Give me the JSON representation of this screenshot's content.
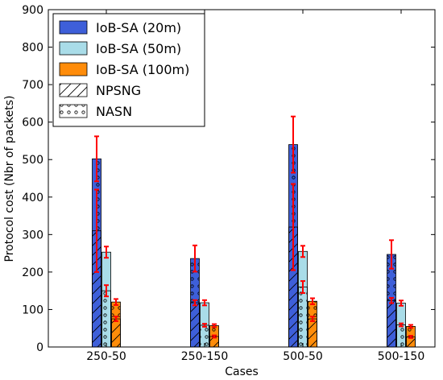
{
  "chart_data": {
    "type": "bar",
    "xlabel": "Cases",
    "ylabel": "Protocol cost (Nbr of packets)",
    "ylim": [
      0,
      900
    ],
    "yticks": [
      0,
      100,
      200,
      300,
      400,
      500,
      600,
      700,
      800,
      900
    ],
    "categories": [
      "250-50",
      "250-150",
      "500-50",
      "500-150"
    ],
    "legend_position": "top-left",
    "grid": false,
    "series": [
      {
        "name": "IoB-SA (20m)",
        "color": "#3e5fd9",
        "values": [
          502,
          236,
          540,
          247
        ],
        "error": [
          60,
          35,
          75,
          38
        ]
      },
      {
        "name": "IoB-SA (50m)",
        "color": "#a9dce8",
        "values": [
          253,
          118,
          255,
          117
        ],
        "error": [
          15,
          7,
          15,
          7
        ]
      },
      {
        "name": "IoB-SA (100m)",
        "color": "#ff8c0a",
        "values": [
          120,
          57,
          122,
          55
        ],
        "error": [
          8,
          4,
          8,
          4
        ]
      }
    ],
    "overlays": [
      {
        "name": "NPSNG",
        "hatch": "diagonal",
        "values": [
          310,
          118,
          320,
          124
        ],
        "error": [
          110,
          7,
          115,
          7
        ]
      },
      {
        "name": "NASN",
        "hatch": "circles",
        "values": [
          150,
          58,
          160,
          59
        ],
        "error": [
          15,
          4,
          16,
          4
        ]
      },
      {
        "name": "NPSNG",
        "hatch": "diagonal",
        "values": [
          75,
          28,
          75,
          27
        ],
        "error": [
          6,
          3,
          6,
          3
        ]
      }
    ]
  }
}
